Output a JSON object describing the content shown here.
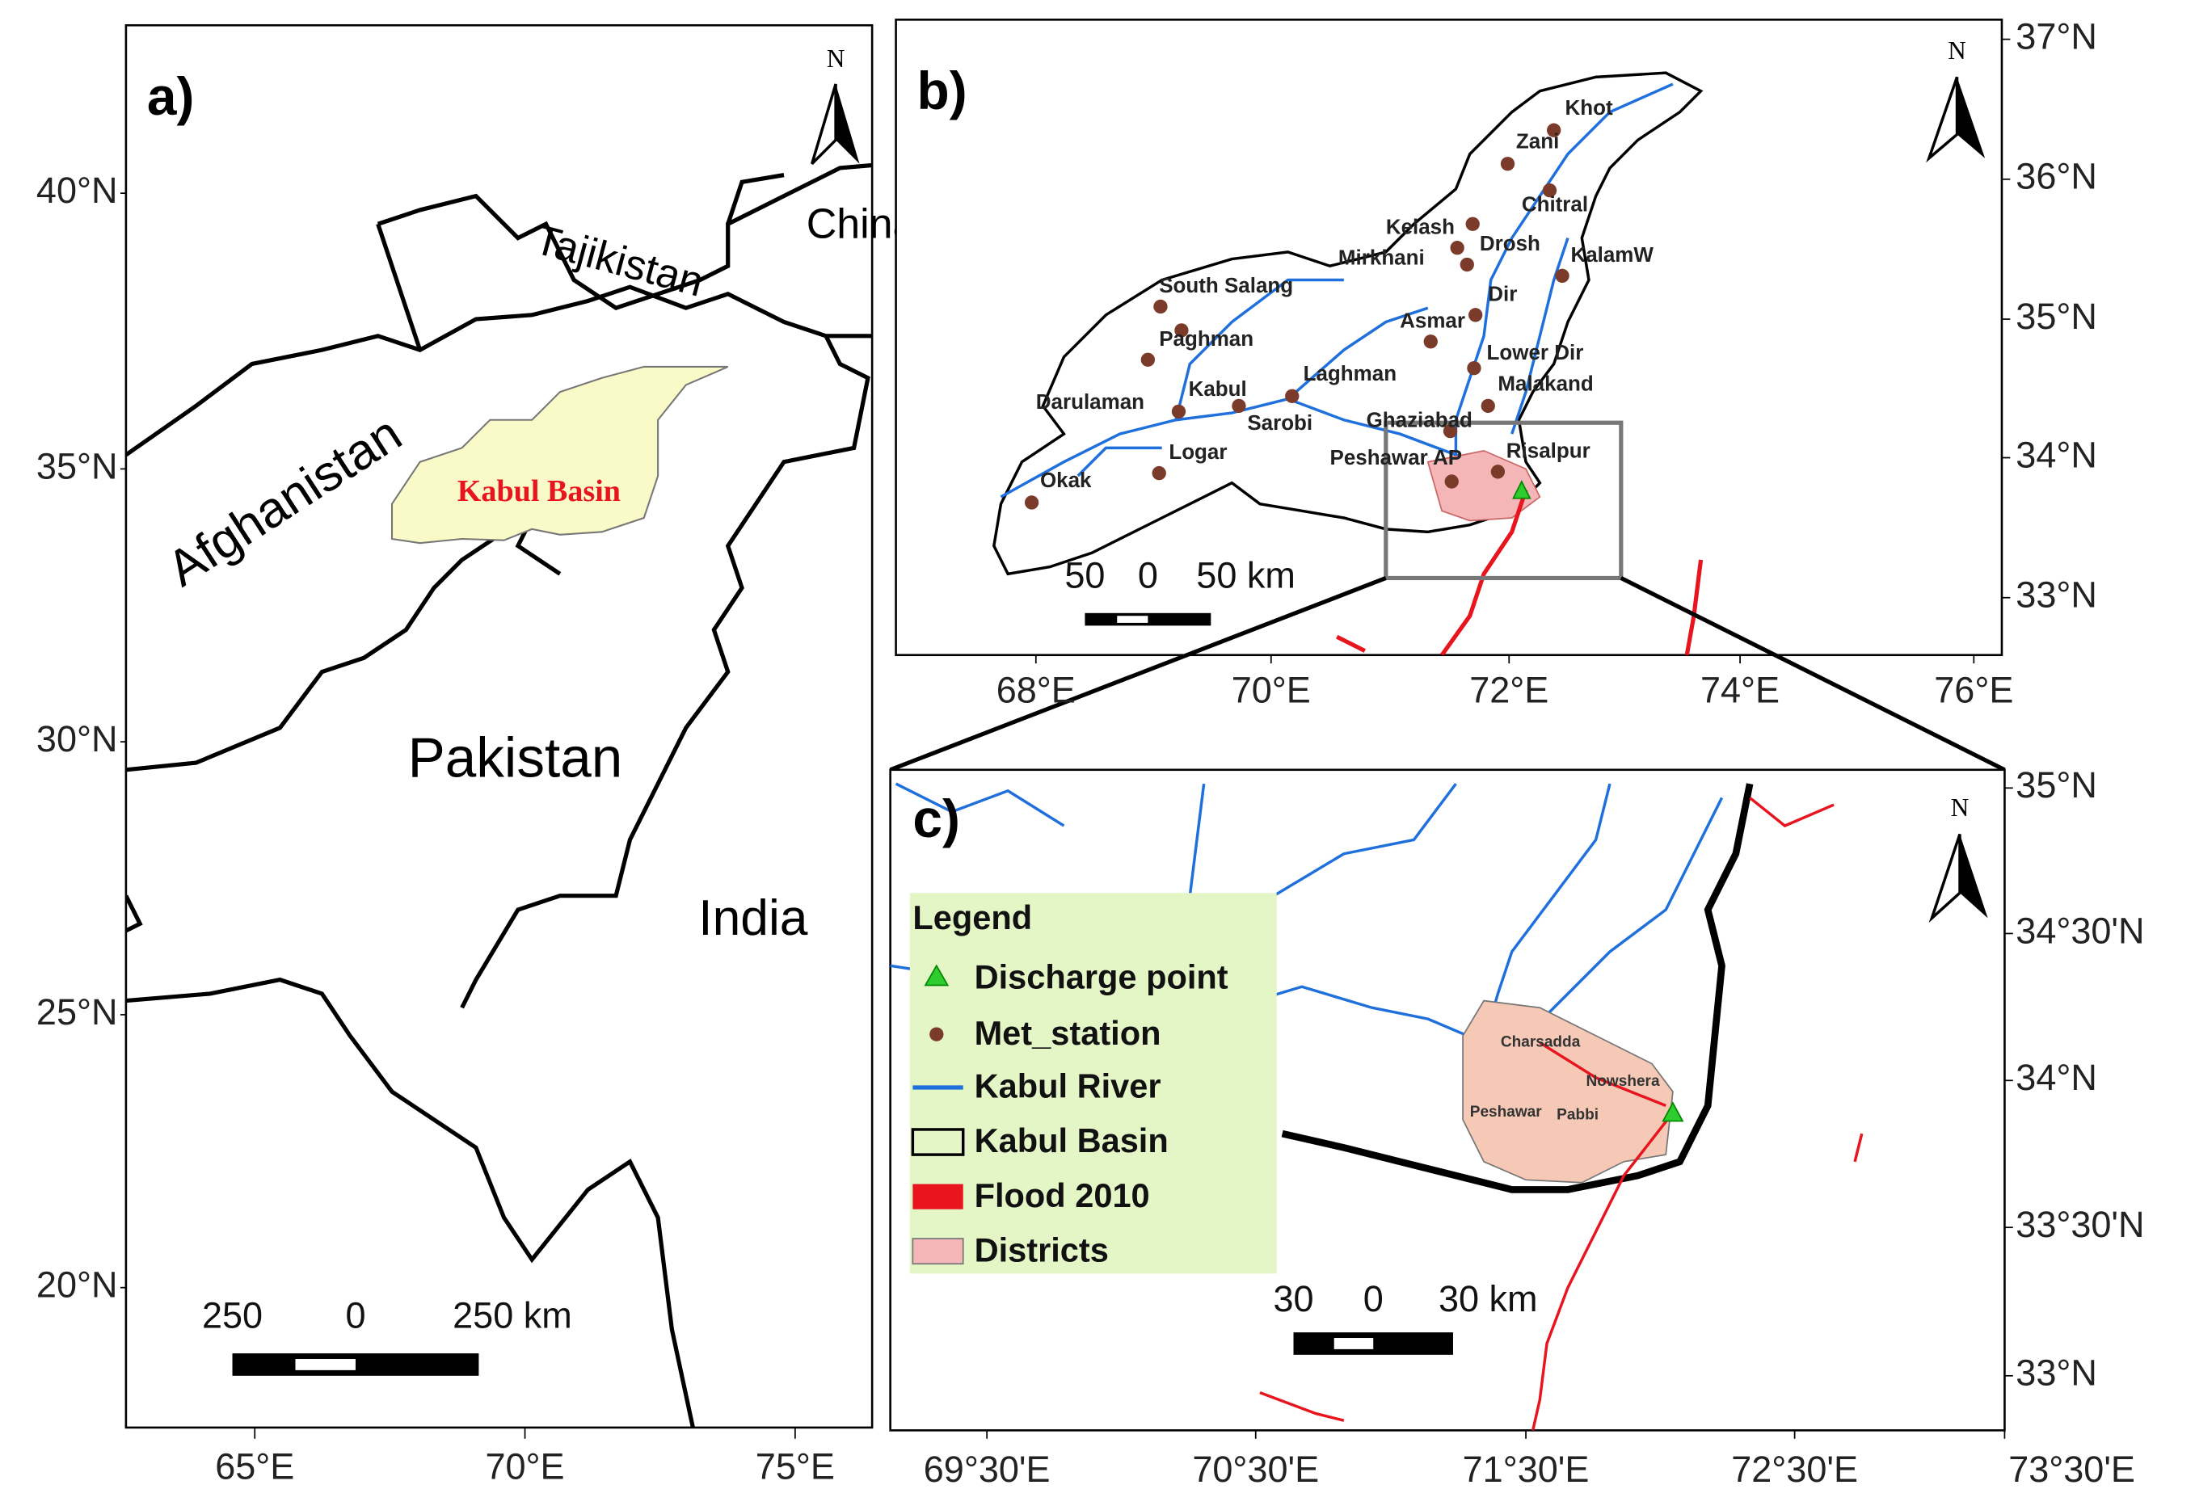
{
  "panel_a": {
    "label": "a)",
    "north": "N",
    "lat_labels": [
      "40°N",
      "35°N",
      "30°N",
      "25°N",
      "20°N"
    ],
    "lon_labels": [
      "65°E",
      "70°E",
      "75°E"
    ],
    "countries": [
      "China",
      "Tajikistan",
      "Afghanistan",
      "Pakistan",
      "India"
    ],
    "basin": "Kabul Basin",
    "scale_bar": [
      "250",
      "0",
      "250 km"
    ]
  },
  "panel_b": {
    "label": "b)",
    "north": "N",
    "lat_labels": [
      "37°N",
      "36°N",
      "35°N",
      "34°N",
      "33°N"
    ],
    "lon_labels": [
      "68°E",
      "70°E",
      "72°E",
      "74°E",
      "76°E"
    ],
    "stations": [
      "Khot",
      "Zani",
      "Chitral",
      "Kelash",
      "Mirkhani",
      "Drosh",
      "KalamW",
      "Dir",
      "Asmar",
      "Lower Dir",
      "Malakand",
      "Ghaziabad",
      "Peshawar AP",
      "Risalpur",
      "South Salang",
      "Paghman",
      "Darulaman",
      "Kabul",
      "Laghman",
      "Sarobi",
      "Logar",
      "Okak"
    ],
    "scale_bar": [
      "50",
      "0",
      "50 km"
    ]
  },
  "panel_c": {
    "label": "c)",
    "north": "N",
    "lat_labels": [
      "35°N",
      "34°30'N",
      "34°N",
      "33°30'N",
      "33°N"
    ],
    "lon_labels": [
      "69°30'E",
      "70°30'E",
      "71°30'E",
      "72°30'E",
      "73°30'E"
    ],
    "districts": [
      "Charsadda",
      "Nowshera",
      "Peshawar",
      "Pabbi"
    ],
    "scale_bar": [
      "30",
      "0",
      "30 km"
    ],
    "legend": {
      "title": "Legend",
      "items": [
        "Discharge point",
        "Met_station",
        "Kabul River",
        "Kabul Basin",
        "Flood 2010",
        "Districts"
      ]
    }
  }
}
